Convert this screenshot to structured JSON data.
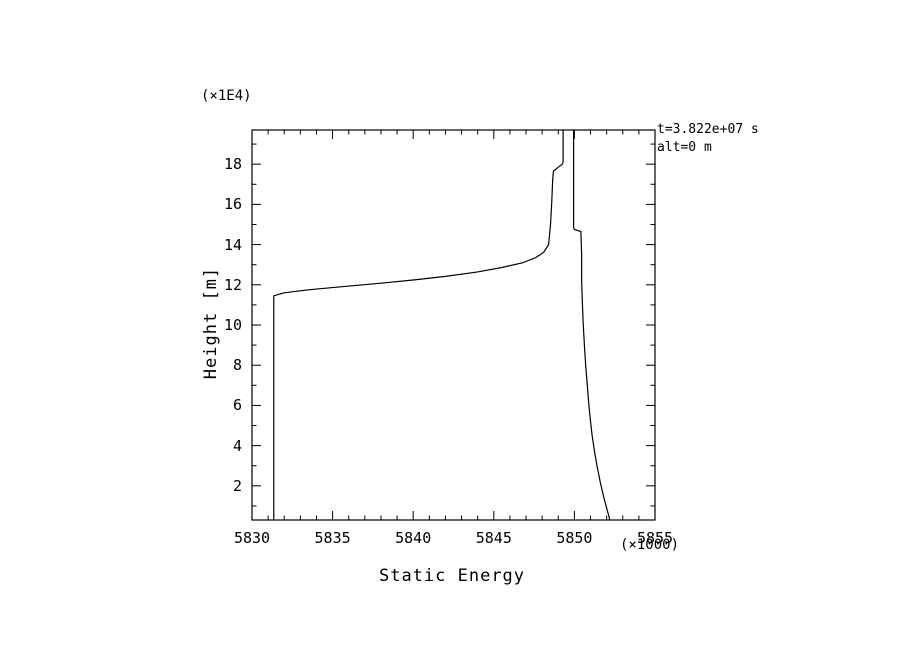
{
  "figure": {
    "y_unit_label": "(×1E4)",
    "x_unit_label": "(×1000)",
    "x_title": "Static Energy",
    "y_title": "Height [m]",
    "annotations": {
      "time": "t=3.822e+07 s",
      "altitude": "alt=0 m"
    }
  },
  "chart_data": {
    "type": "line",
    "title": "",
    "xlabel": "Static Energy (×1000)",
    "ylabel": "Height [m] (×1E4)",
    "xlim": [
      5830,
      5855
    ],
    "ylim": [
      0.3,
      19.7
    ],
    "x_ticks": [
      5830,
      5835,
      5840,
      5845,
      5850,
      5855
    ],
    "y_ticks": [
      2,
      4,
      6,
      8,
      10,
      12,
      14,
      16,
      18
    ],
    "x_minor_step": 1,
    "y_minor_step": 1,
    "grid": false,
    "legend": "none",
    "line_color": "#000000",
    "annotations": [
      "t=3.822e+07 s",
      "alt=0 m"
    ],
    "series": [
      {
        "name": "profile-left-branch",
        "points": [
          [
            5831.35,
            0.3
          ],
          [
            5831.35,
            11.45
          ],
          [
            5832.0,
            11.6
          ],
          [
            5833.5,
            11.75
          ],
          [
            5835.5,
            11.9
          ],
          [
            5838.0,
            12.08
          ],
          [
            5840.0,
            12.24
          ],
          [
            5842.0,
            12.42
          ],
          [
            5844.0,
            12.64
          ],
          [
            5845.5,
            12.86
          ],
          [
            5846.8,
            13.1
          ],
          [
            5847.6,
            13.35
          ],
          [
            5848.1,
            13.62
          ],
          [
            5848.4,
            14.0
          ],
          [
            5848.52,
            15.0
          ],
          [
            5848.6,
            16.2
          ],
          [
            5848.65,
            17.2
          ],
          [
            5848.7,
            17.65
          ],
          [
            5849.0,
            17.85
          ],
          [
            5849.25,
            18.0
          ],
          [
            5849.3,
            18.1
          ],
          [
            5849.3,
            19.7
          ]
        ]
      },
      {
        "name": "profile-right-branch",
        "points": [
          [
            5849.95,
            19.7
          ],
          [
            5849.95,
            14.85
          ],
          [
            5850.0,
            14.75
          ],
          [
            5850.4,
            14.65
          ],
          [
            5850.45,
            13.5
          ],
          [
            5850.45,
            12.2
          ],
          [
            5850.5,
            11.0
          ],
          [
            5850.55,
            10.0
          ],
          [
            5850.62,
            9.0
          ],
          [
            5850.7,
            8.0
          ],
          [
            5850.8,
            7.0
          ],
          [
            5850.9,
            6.0
          ],
          [
            5851.0,
            5.2
          ],
          [
            5851.1,
            4.5
          ],
          [
            5851.25,
            3.7
          ],
          [
            5851.4,
            3.0
          ],
          [
            5851.6,
            2.2
          ],
          [
            5851.8,
            1.5
          ],
          [
            5852.0,
            0.9
          ],
          [
            5852.2,
            0.3
          ]
        ]
      }
    ]
  }
}
